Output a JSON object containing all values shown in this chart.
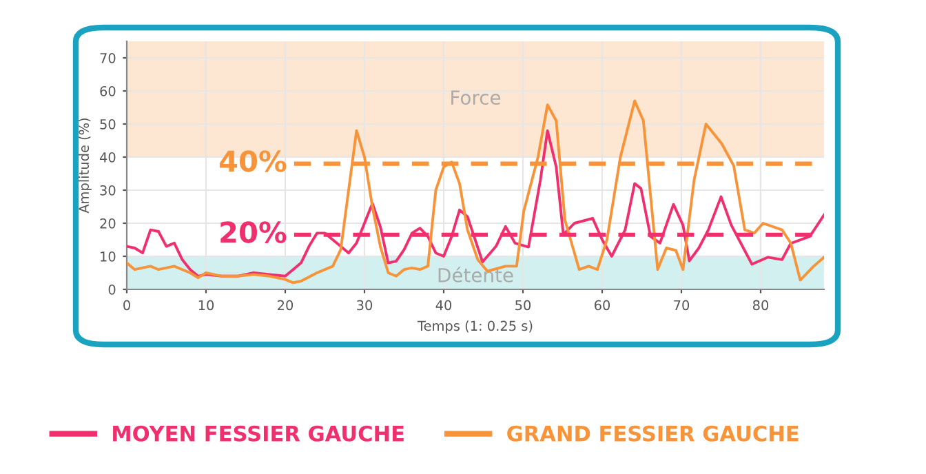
{
  "chart_data": {
    "type": "line",
    "xlabel": "Temps (1: 0.25 s)",
    "ylabel": "Amplitude (%)",
    "xlim": [
      0,
      88
    ],
    "ylim": [
      0,
      75
    ],
    "xticks": [
      0,
      10,
      20,
      30,
      40,
      50,
      60,
      70,
      80
    ],
    "yticks": [
      0,
      10,
      20,
      30,
      40,
      50,
      60,
      70
    ],
    "grid": true,
    "legend": "bottom",
    "marker": "none",
    "line_style": "solid",
    "series": [
      {
        "name": "MOYEN FESSIER GAUCHE",
        "color": "#f0306e",
        "x": [
          0,
          1,
          2,
          3,
          4,
          5,
          6,
          7,
          8,
          9,
          10,
          12,
          14,
          16,
          18,
          20,
          21,
          22,
          23,
          24,
          25,
          26,
          27,
          28,
          29,
          31,
          32,
          33,
          34,
          35,
          36,
          37,
          38,
          39,
          40,
          41,
          42,
          43,
          44.9,
          46.6,
          47.8,
          49,
          50.7,
          52.2,
          53.1,
          54.2,
          55.1,
          56.5,
          58.8,
          60,
          61.2,
          62.9,
          64.1,
          64.9,
          66.1,
          67.3,
          69,
          70.2,
          71,
          72.2,
          73.4,
          75,
          76.3,
          78.9,
          80.9,
          82.7,
          83.8,
          86.2,
          88
        ],
        "values": [
          13,
          12.5,
          11,
          18,
          17.5,
          13,
          14,
          9,
          6,
          4,
          4.5,
          4,
          4,
          5,
          4.5,
          4,
          6,
          8,
          13,
          17,
          17,
          15,
          13,
          11,
          14,
          26,
          19,
          8,
          8.5,
          12,
          17,
          18.5,
          16,
          11,
          10,
          16,
          24,
          22,
          8.3,
          13,
          19,
          14,
          12.8,
          33,
          48,
          37,
          16.6,
          20,
          21.5,
          15,
          10,
          18,
          32,
          30.5,
          16,
          14,
          25.7,
          19.4,
          8.6,
          12.5,
          18,
          28,
          19.4,
          7.6,
          9.7,
          9,
          13.9,
          16,
          22.5
        ]
      },
      {
        "name": "GRAND FESSIER GAUCHE",
        "color": "#f7943a",
        "x": [
          0,
          1,
          3,
          4,
          6,
          8,
          9,
          10,
          12,
          14,
          16,
          18,
          20,
          21,
          22,
          24,
          26,
          27,
          28,
          29,
          30,
          31,
          32,
          33,
          34,
          35,
          36,
          37,
          38,
          39,
          40,
          41,
          42,
          43,
          44.3,
          45.5,
          47.8,
          49.2,
          50.1,
          51.9,
          53.1,
          54.2,
          55.3,
          57.1,
          58.3,
          59.4,
          60.6,
          62.3,
          64.1,
          65.2,
          66.4,
          67,
          68.1,
          69.3,
          70.2,
          71.6,
          73.1,
          75.1,
          76.6,
          78,
          79.2,
          80.3,
          82.7,
          83.8,
          85,
          86.7,
          88
        ],
        "values": [
          8,
          6,
          7,
          6,
          7,
          5,
          3.5,
          5,
          4,
          4,
          4.5,
          4,
          3,
          2,
          2.5,
          5,
          7,
          12,
          30,
          48,
          40,
          25,
          13,
          5,
          4,
          6,
          6.5,
          6,
          7,
          30,
          37,
          38.5,
          32,
          18,
          9,
          5.5,
          7,
          7,
          23.6,
          40,
          55.8,
          51,
          21,
          6,
          7,
          6,
          15,
          40,
          57,
          51,
          21,
          6,
          12.5,
          11.8,
          6,
          33,
          50,
          44,
          37.4,
          18,
          17,
          20,
          18,
          14,
          2.8,
          7,
          9.7
        ]
      }
    ],
    "annotations": [
      "40%",
      "20%"
    ],
    "ref_lines": [
      {
        "axis": "y",
        "value": 38,
        "color": "#f7943a",
        "line_style": "dashed"
      },
      {
        "axis": "y",
        "value": 16.5,
        "color": "#f0306e",
        "line_style": "dashed"
      }
    ],
    "bands": [
      {
        "axis": "y",
        "from": 40,
        "to": 75,
        "label": "Force",
        "color": "#fde6d2"
      },
      {
        "axis": "y",
        "from": 0,
        "to": 10,
        "label": "Détente",
        "color": "#d3f0f0"
      }
    ]
  }
}
